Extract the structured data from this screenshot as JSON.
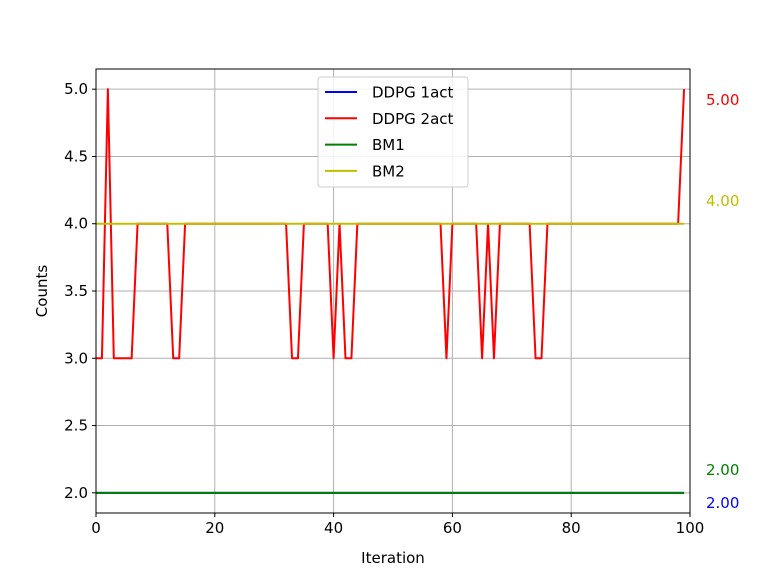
{
  "chart_data": {
    "type": "line",
    "title": "",
    "xlabel": "Iteration",
    "ylabel": "Counts",
    "xlim": [
      0,
      100
    ],
    "ylim": [
      1.85,
      5.15
    ],
    "x_ticks": [
      0,
      20,
      40,
      60,
      80,
      100
    ],
    "y_ticks": [
      2.0,
      2.5,
      3.0,
      3.5,
      4.0,
      4.5,
      5.0
    ],
    "x_tick_labels": [
      "0",
      "20",
      "40",
      "60",
      "80",
      "100"
    ],
    "y_tick_labels": [
      "2.0",
      "2.5",
      "3.0",
      "3.5",
      "4.0",
      "4.5",
      "5.0"
    ],
    "grid": true,
    "legend_position": "top-center",
    "series": [
      {
        "name": "DDPG 1act",
        "color": "#0000ff",
        "constant": 2.0,
        "x_range": [
          0,
          99
        ]
      },
      {
        "name": "DDPG 2act",
        "color": "#ff0000",
        "x": [
          0,
          1,
          2,
          3,
          4,
          5,
          6,
          7,
          8,
          9,
          10,
          11,
          12,
          13,
          14,
          15,
          16,
          17,
          18,
          19,
          20,
          21,
          22,
          23,
          24,
          25,
          26,
          27,
          28,
          29,
          30,
          31,
          32,
          33,
          34,
          35,
          36,
          37,
          38,
          39,
          40,
          41,
          42,
          43,
          44,
          45,
          46,
          47,
          48,
          49,
          50,
          51,
          52,
          53,
          54,
          55,
          56,
          57,
          58,
          59,
          60,
          61,
          62,
          63,
          64,
          65,
          66,
          67,
          68,
          69,
          70,
          71,
          72,
          73,
          74,
          75,
          76,
          77,
          78,
          79,
          80,
          81,
          82,
          83,
          84,
          85,
          86,
          87,
          88,
          89,
          90,
          91,
          92,
          93,
          94,
          95,
          96,
          97,
          98,
          99
        ],
        "values": [
          3,
          3,
          5,
          3,
          3,
          3,
          3,
          4,
          4,
          4,
          4,
          4,
          4,
          3,
          3,
          4,
          4,
          4,
          4,
          4,
          4,
          4,
          4,
          4,
          4,
          4,
          4,
          4,
          4,
          4,
          4,
          4,
          4,
          3,
          3,
          4,
          4,
          4,
          4,
          4,
          3,
          4,
          3,
          3,
          4,
          4,
          4,
          4,
          4,
          4,
          4,
          4,
          4,
          4,
          4,
          4,
          4,
          4,
          4,
          3,
          4,
          4,
          4,
          4,
          4,
          3,
          4,
          3,
          4,
          4,
          4,
          4,
          4,
          4,
          3,
          3,
          4,
          4,
          4,
          4,
          4,
          4,
          4,
          4,
          4,
          4,
          4,
          4,
          4,
          4,
          4,
          4,
          4,
          4,
          4,
          4,
          4,
          4,
          4,
          5
        ]
      },
      {
        "name": "BM1",
        "color": "#008000",
        "constant": 2.0,
        "x_range": [
          0,
          99
        ]
      },
      {
        "name": "BM2",
        "color": "#bfbf00",
        "constant": 4.0,
        "x_range": [
          0,
          99
        ]
      }
    ],
    "right_annotations": [
      {
        "text": "5.00",
        "value": 5.0,
        "color": "#ff0000"
      },
      {
        "text": "4.00",
        "value": 4.0,
        "color": "#bfbf00"
      },
      {
        "text": "2.00",
        "value": 2.0,
        "color": "#008000"
      },
      {
        "text": "2.00",
        "value": 2.0,
        "color": "#0000ff"
      }
    ]
  }
}
